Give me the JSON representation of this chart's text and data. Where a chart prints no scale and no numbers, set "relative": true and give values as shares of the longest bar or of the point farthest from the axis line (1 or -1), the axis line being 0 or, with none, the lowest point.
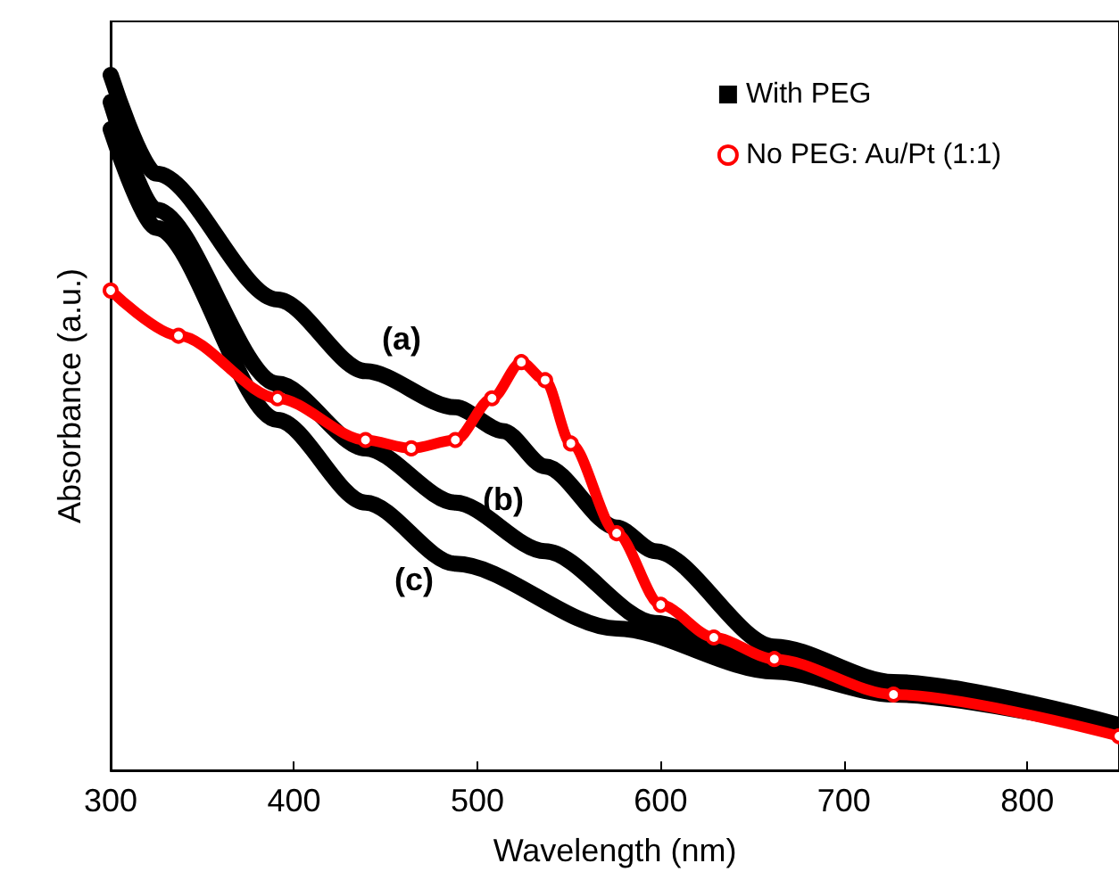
{
  "chart_data": {
    "type": "line",
    "relative": true,
    "xlabel": "Wavelength (nm)",
    "ylabel": "Absorbance (a.u.)",
    "xlim": [
      300,
      850
    ],
    "xticks": [
      300,
      400,
      500,
      600,
      700,
      800
    ],
    "legend": "top right",
    "grid": false,
    "series": [
      {
        "name": "With PEG",
        "color": "#000000",
        "marker": "square",
        "x": [
          300,
          325,
          391,
          439,
          488,
          514,
          537,
          576,
          597,
          662,
          727,
          850
        ],
        "values": [
          1.0,
          0.858,
          0.677,
          0.574,
          0.522,
          0.488,
          0.437,
          0.349,
          0.315,
          0.178,
          0.127,
          0.065
        ]
      },
      {
        "color": "#000000",
        "marker": "square",
        "x": [
          300,
          325,
          391,
          439,
          488,
          537,
          597,
          646,
          727,
          850
        ],
        "values": [
          0.961,
          0.806,
          0.556,
          0.463,
          0.385,
          0.315,
          0.212,
          0.168,
          0.114,
          0.059
        ]
      },
      {
        "color": "#000000",
        "marker": "square",
        "x": [
          300,
          325,
          391,
          439,
          488,
          576,
          662,
          727,
          850
        ],
        "values": [
          0.922,
          0.78,
          0.504,
          0.385,
          0.297,
          0.204,
          0.142,
          0.109,
          0.057
        ]
      },
      {
        "name": "No PEG: Au/Pt (1:1)",
        "color": "#ff0000",
        "marker": "circle",
        "x": [
          300,
          337,
          391,
          439,
          464,
          488,
          508,
          524,
          537,
          551,
          576,
          600,
          629,
          662,
          727,
          850
        ],
        "values": [
          0.69,
          0.625,
          0.535,
          0.475,
          0.463,
          0.475,
          0.535,
          0.587,
          0.561,
          0.47,
          0.341,
          0.238,
          0.191,
          0.16,
          0.109,
          0.049
        ]
      }
    ],
    "annotations": [
      "(a)",
      "(b)",
      "(c)"
    ]
  }
}
